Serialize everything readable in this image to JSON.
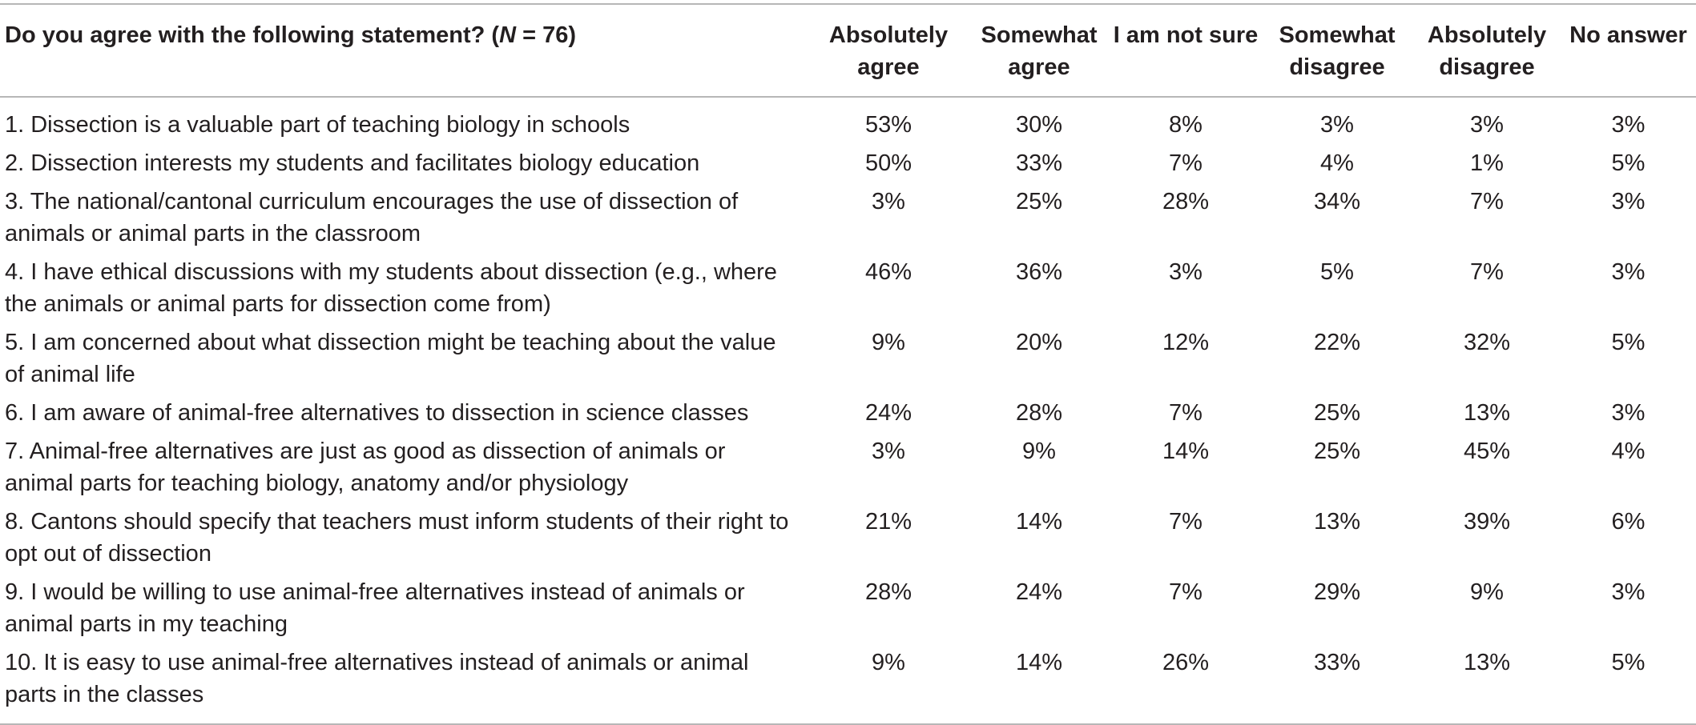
{
  "table": {
    "header": {
      "question_prefix": "Do you agree with the following statement? (",
      "question_n_label": "N",
      "question_n_value": " = 76)",
      "columns": [
        "Absolutely agree",
        "Somewhat agree",
        "I am not sure",
        "Somewhat disagree",
        "Absolutely disagree",
        "No answer"
      ]
    },
    "rows": [
      {
        "statement": "1. Dissection is a valuable part of teaching biology in schools",
        "values": [
          "53%",
          "30%",
          "8%",
          "3%",
          "3%",
          "3%"
        ]
      },
      {
        "statement": "2. Dissection interests my students and facilitates biology education",
        "values": [
          "50%",
          "33%",
          "7%",
          "4%",
          "1%",
          "5%"
        ]
      },
      {
        "statement": "3. The national/cantonal curriculum encourages the use of dissection of animals or animal parts in the classroom",
        "values": [
          "3%",
          "25%",
          "28%",
          "34%",
          "7%",
          "3%"
        ]
      },
      {
        "statement": "4. I have ethical discussions with my students about dissection (e.g., where the animals or animal parts for dissection come from)",
        "values": [
          "46%",
          "36%",
          "3%",
          "5%",
          "7%",
          "3%"
        ]
      },
      {
        "statement": "5. I am concerned about what dissection might be teaching about the value of animal life",
        "values": [
          "9%",
          "20%",
          "12%",
          "22%",
          "32%",
          "5%"
        ]
      },
      {
        "statement": "6. I am aware of animal-free alternatives to dissection in science classes",
        "values": [
          "24%",
          "28%",
          "7%",
          "25%",
          "13%",
          "3%"
        ]
      },
      {
        "statement": "7. Animal-free alternatives are just as good as dissection of animals or animal parts for teaching biology, anatomy and/or physiology",
        "values": [
          "3%",
          "9%",
          "14%",
          "25%",
          "45%",
          "4%"
        ]
      },
      {
        "statement": "8. Cantons should specify that teachers must inform students of their right to opt out of dissection",
        "values": [
          "21%",
          "14%",
          "7%",
          "13%",
          "39%",
          "6%"
        ]
      },
      {
        "statement": "9. I would be willing to use animal-free alternatives instead of animals or animal parts in my teaching",
        "values": [
          "28%",
          "24%",
          "7%",
          "29%",
          "9%",
          "3%"
        ]
      },
      {
        "statement": "10. It is easy to use animal-free alternatives instead of animals or animal parts in the classes",
        "values": [
          "9%",
          "14%",
          "26%",
          "33%",
          "13%",
          "5%"
        ]
      }
    ]
  }
}
